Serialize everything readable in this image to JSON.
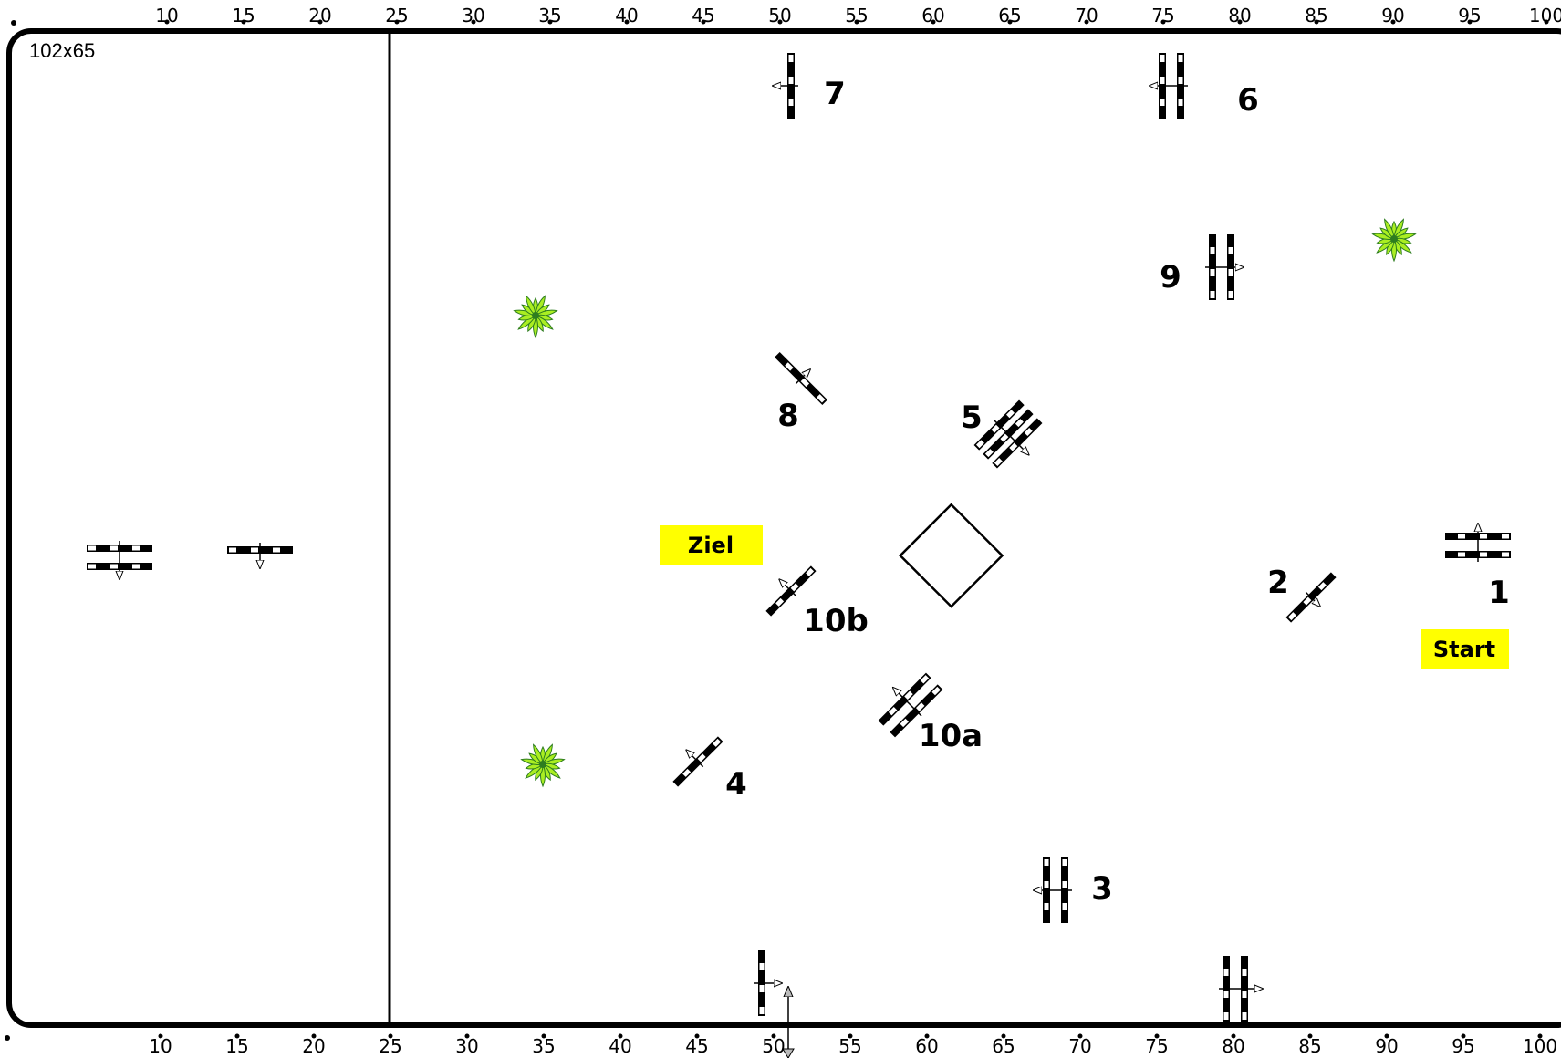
{
  "arena": {
    "size_label": "102x65"
  },
  "ruler": {
    "top_ticks": [
      "10",
      "15",
      "20",
      "25",
      "30",
      "35",
      "40",
      "45",
      "50",
      "55",
      "60",
      "65",
      "70",
      "75",
      "80",
      "85",
      "90",
      "95",
      "100"
    ],
    "bottom_ticks": [
      "10",
      "15",
      "20",
      "25",
      "30",
      "35",
      "40",
      "45",
      "50",
      "55",
      "60",
      "65",
      "70",
      "75",
      "80",
      "85",
      "90",
      "95",
      "100"
    ]
  },
  "markers": {
    "start": "Start",
    "finish": "Ziel"
  },
  "jumps": [
    {
      "number": "1",
      "kind": "oxer"
    },
    {
      "number": "2",
      "kind": "vertical"
    },
    {
      "number": "3",
      "kind": "oxer"
    },
    {
      "number": "4",
      "kind": "vertical"
    },
    {
      "number": "5",
      "kind": "triple-bar"
    },
    {
      "number": "6",
      "kind": "oxer"
    },
    {
      "number": "7",
      "kind": "vertical"
    },
    {
      "number": "8",
      "kind": "vertical"
    },
    {
      "number": "9",
      "kind": "oxer"
    },
    {
      "number": "10a",
      "kind": "oxer"
    },
    {
      "number": "10b",
      "kind": "vertical"
    }
  ],
  "warmup_jumps": [
    {
      "kind": "oxer"
    },
    {
      "kind": "vertical"
    }
  ],
  "colors": {
    "marker_fill": "#ffff00",
    "plant_fill": "#aaee22",
    "plant_stroke": "#2e7d1f"
  },
  "icons": {
    "plant": "plant-icon",
    "arrow": "direction-arrow-icon",
    "diamond": "diamond-obstacle-icon"
  }
}
